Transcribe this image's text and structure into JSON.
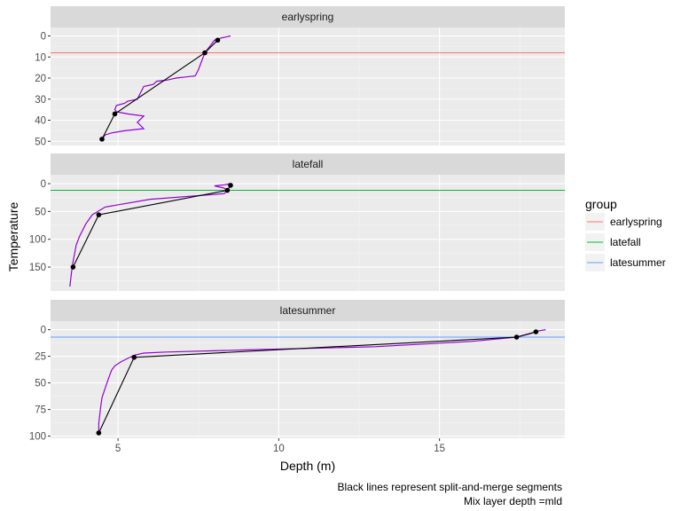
{
  "chart_data": {
    "type": "line",
    "xlabel": "Depth (m)",
    "ylabel": "Temperature",
    "xlim": [
      2.9,
      18.9
    ],
    "x_ticks": [
      5,
      10,
      15
    ],
    "legend": {
      "title": "group",
      "placement": "right",
      "entries": [
        {
          "name": "earlyspring",
          "color": "#F8766D"
        },
        {
          "name": "latefall",
          "color": "#00BA38"
        },
        {
          "name": "latesummer",
          "color": "#619CFF"
        }
      ]
    },
    "caption": [
      "Black lines represent split-and-merge segments",
      "Mix layer depth =mld"
    ],
    "profile_color": "#9400D3",
    "segment_color": "#000000",
    "panels": [
      {
        "strip": "earlyspring",
        "ylim": [
          -4,
          52
        ],
        "y_reversed": true,
        "y_ticks": [
          0,
          10,
          20,
          30,
          40,
          50
        ],
        "mld": 8,
        "mld_color": "#F8766D",
        "profile": [
          [
            8.5,
            0
          ],
          [
            8.2,
            1
          ],
          [
            8.0,
            2
          ],
          [
            7.9,
            4
          ],
          [
            7.8,
            6
          ],
          [
            7.7,
            8
          ],
          [
            7.6,
            12
          ],
          [
            7.5,
            16
          ],
          [
            7.4,
            19
          ],
          [
            7.1,
            19.5
          ],
          [
            6.8,
            20
          ],
          [
            6.5,
            21
          ],
          [
            6.2,
            21.5
          ],
          [
            6.1,
            23
          ],
          [
            5.8,
            24
          ],
          [
            5.7,
            27
          ],
          [
            5.6,
            30
          ],
          [
            5.3,
            31
          ],
          [
            5.2,
            32
          ],
          [
            4.95,
            33
          ],
          [
            4.9,
            35
          ],
          [
            4.95,
            36
          ],
          [
            5.3,
            37
          ],
          [
            5.8,
            38
          ],
          [
            5.6,
            41
          ],
          [
            5.8,
            44
          ],
          [
            5.2,
            45
          ],
          [
            4.8,
            46
          ],
          [
            4.6,
            47
          ],
          [
            4.5,
            49
          ]
        ],
        "segments": [
          [
            8.1,
            2
          ],
          [
            7.7,
            8
          ],
          [
            4.9,
            37
          ],
          [
            4.5,
            49
          ]
        ]
      },
      {
        "strip": "latefall",
        "ylim": [
          -16,
          193
        ],
        "y_reversed": true,
        "y_ticks": [
          0,
          50,
          100,
          150
        ],
        "mld": 12,
        "mld_color": "#00BA38",
        "profile": [
          [
            8.5,
            0
          ],
          [
            8.3,
            2
          ],
          [
            8.0,
            4
          ],
          [
            8.3,
            8
          ],
          [
            8.4,
            12
          ],
          [
            8.3,
            18
          ],
          [
            6.0,
            28
          ],
          [
            4.6,
            42
          ],
          [
            4.2,
            56
          ],
          [
            4.0,
            72
          ],
          [
            3.8,
            95
          ],
          [
            3.7,
            110
          ],
          [
            3.6,
            140
          ],
          [
            3.55,
            160
          ],
          [
            3.5,
            185
          ]
        ],
        "segments": [
          [
            8.5,
            3
          ],
          [
            8.4,
            12
          ],
          [
            4.4,
            56
          ],
          [
            3.6,
            150
          ]
        ]
      },
      {
        "strip": "latesummer",
        "ylim": [
          -8,
          102
        ],
        "y_reversed": true,
        "y_ticks": [
          0,
          25,
          50,
          75,
          100
        ],
        "mld": 7,
        "mld_color": "#619CFF",
        "profile": [
          [
            18.3,
            0
          ],
          [
            18.1,
            1
          ],
          [
            17.8,
            4
          ],
          [
            17.4,
            7
          ],
          [
            16.0,
            11
          ],
          [
            13.0,
            16
          ],
          [
            9.0,
            19
          ],
          [
            6.5,
            21
          ],
          [
            5.8,
            22
          ],
          [
            5.5,
            24
          ],
          [
            5.3,
            27
          ],
          [
            5.1,
            30
          ],
          [
            4.9,
            34
          ],
          [
            4.8,
            38
          ],
          [
            4.7,
            46
          ],
          [
            4.6,
            55
          ],
          [
            4.5,
            64
          ],
          [
            4.45,
            75
          ],
          [
            4.4,
            88
          ],
          [
            4.4,
            97
          ]
        ],
        "segments": [
          [
            18.0,
            2
          ],
          [
            17.4,
            7
          ],
          [
            5.5,
            26
          ],
          [
            4.4,
            97
          ]
        ]
      }
    ]
  }
}
